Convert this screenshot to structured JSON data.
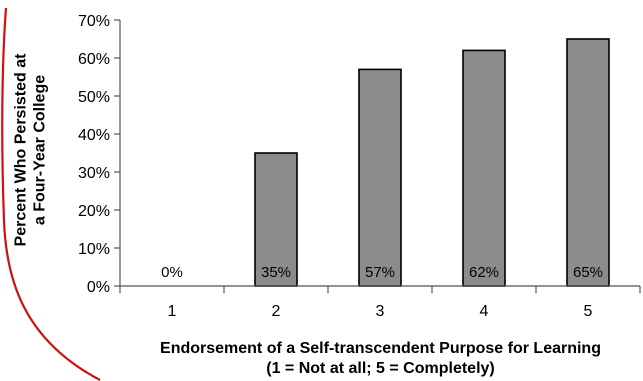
{
  "chart_data": {
    "type": "bar",
    "categories": [
      "1",
      "2",
      "3",
      "4",
      "5"
    ],
    "values": [
      0,
      35,
      57,
      62,
      65
    ],
    "data_labels": [
      "0%",
      "35%",
      "57%",
      "62%",
      "65%"
    ],
    "ylabel_lines": [
      "Percent Who Persisted at",
      "a Four-Year College"
    ],
    "xlabel_lines": [
      "Endorsement of a Self-transcendent Purpose for Learning",
      "(1 = Not at all; 5 = Completely)"
    ],
    "ylim": [
      0,
      70
    ],
    "yticks": [
      0,
      10,
      20,
      30,
      40,
      50,
      60,
      70
    ],
    "ytick_labels": [
      "0%",
      "10%",
      "20%",
      "30%",
      "40%",
      "50%",
      "60%",
      "70%"
    ],
    "grid": false,
    "bar_color": "#8c8c8c",
    "annotation_color": "#d01010"
  }
}
